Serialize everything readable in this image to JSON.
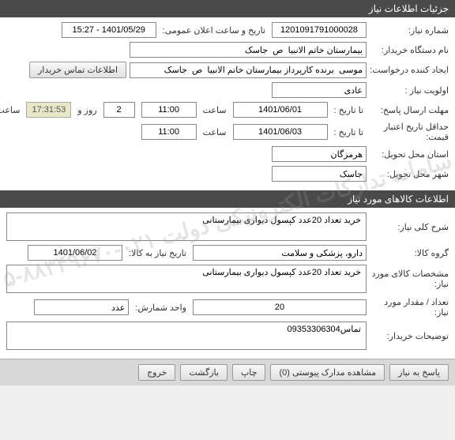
{
  "sections": {
    "need_info_header": "جزئیات اطلاعات نیاز",
    "goods_info_header": "اطلاعات کالاهای مورد نیاز"
  },
  "need": {
    "number_label": "شماره نیاز:",
    "number": "1201091791000028",
    "public_date_label": "تاریخ و ساعت اعلان عمومی:",
    "public_date": "1401/05/29 - 15:27",
    "buyer_label": "نام دستگاه خریدار:",
    "buyer": "بیمارستان خاتم الانبیا  ص  جاسک",
    "requester_label": "ایجاد کننده درخواست:",
    "requester": "موسی  برنده کارپرداز بیمارستان خاتم الانبیا  ص  جاسک",
    "contact_btn": "اطلاعات تماس خریدار",
    "priority_label": "اولویت نیاز :",
    "priority": "عادی",
    "deadline_label": "مهلت ارسال پاسخ:",
    "to_date_label": "تا تاریخ :",
    "deadline_date": "1401/06/01",
    "time_label": "ساعت",
    "deadline_time": "11:00",
    "days": "2",
    "days_label": "روز و",
    "countdown": "17:31:53",
    "remaining_label": "ساعت باقی مانده",
    "validity_label": "حداقل تاریخ اعتبار قیمت:",
    "validity_date": "1401/06/03",
    "validity_time": "11:00",
    "province_label": "استان محل تحویل:",
    "province": "هرمزگان",
    "city_label": "شهر محل تحویل:",
    "city": "جاسک"
  },
  "goods": {
    "desc_label": "شرح کلی نیاز:",
    "desc": "خرید تعداد 20عدد کپسول دیواری بیمارستانی",
    "group_label": "گروه کالا:",
    "group": "دارو، پزشکی و سلامت",
    "need_date_label": "تاریخ نیاز به کالا:",
    "need_date": "1401/06/02",
    "spec_label": "مشخصات کالای مورد نیاز:",
    "spec": "خرید تعداد 20عدد کپسول دیواری بیمارستانی",
    "qty_label": "تعداد / مقدار مورد نیاز:",
    "qty": "20",
    "unit_label": "واحد شمارش:",
    "unit": "عدد",
    "notes_label": "توضیحات خریدار:",
    "notes": "تماس09353306304"
  },
  "footer": {
    "reply": "پاسخ به نیاز",
    "attachments": "مشاهده مدارک پیوستی (0)",
    "print": "چاپ",
    "back": "بازگشت",
    "exit": "خروج"
  },
  "watermark": "سامانه تدارکات الکترونیکی دولت\n۰۲۱-۸۸۳۴۹۶۷۰-۵"
}
